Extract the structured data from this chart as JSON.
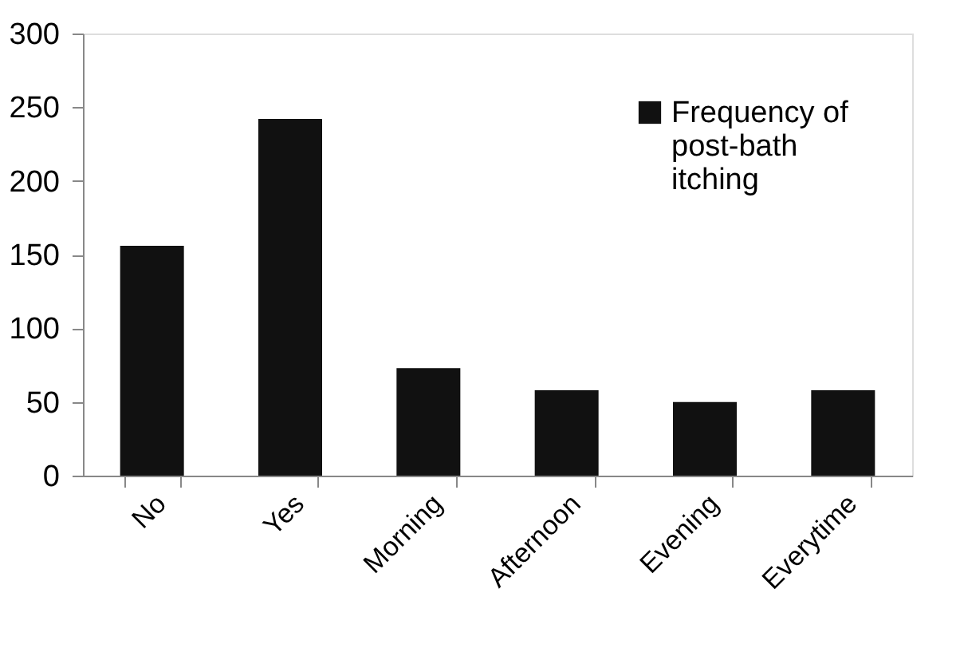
{
  "chart_data": {
    "type": "bar",
    "categories": [
      "No",
      "Yes",
      "Morning",
      "Afternoon",
      "Evening",
      "Everytime"
    ],
    "series": [
      {
        "name": "Frequency of post-bath itching",
        "color": "#111111",
        "values": [
          156,
          242,
          73,
          58,
          50,
          58
        ]
      }
    ],
    "ylim": [
      0,
      300
    ],
    "yticks": [
      0,
      50,
      100,
      150,
      200,
      250,
      300
    ],
    "grid": false,
    "legend": "top right"
  }
}
